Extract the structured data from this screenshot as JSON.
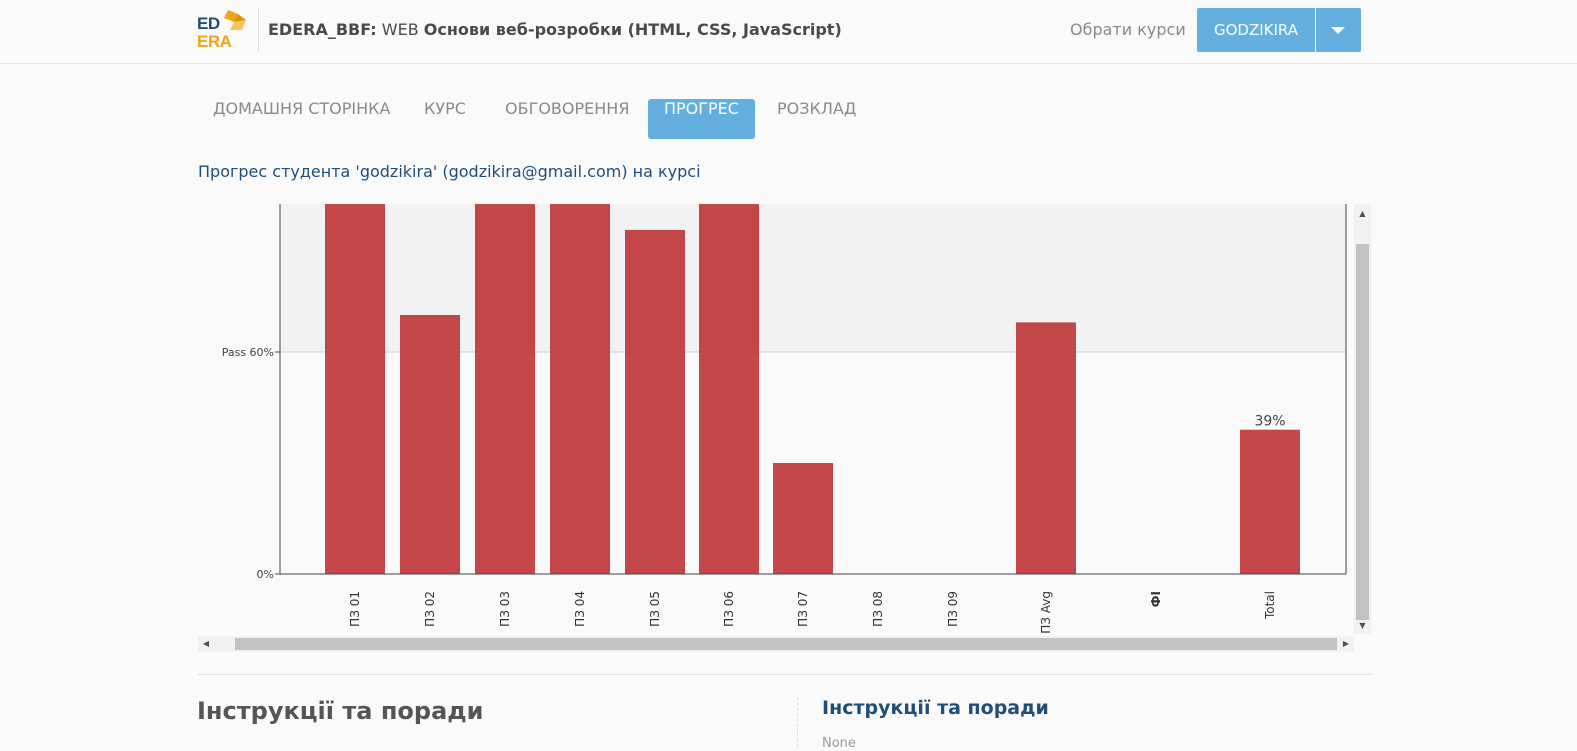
{
  "header": {
    "logo_top": "ED",
    "logo_bottom": "ERA",
    "org": "EDERA_BBF:",
    "course_code": " WEB ",
    "course_name": "Основи веб-розробки (HTML, CSS, JavaScript)",
    "choose_courses": "Обрати курси",
    "username": "GODZIKIRA"
  },
  "tabs": [
    {
      "label": "ДОМАШНЯ СТОРІНКА",
      "active": false
    },
    {
      "label": "КУРС",
      "active": false
    },
    {
      "label": "ОБГОВОРЕННЯ",
      "active": false
    },
    {
      "label": "ПРОГРЕС",
      "active": true
    },
    {
      "label": "РОЗКЛАД",
      "active": false
    }
  ],
  "progress_text": "Прогрес студента 'godzikira' (godzikira@gmail.com) на курсі",
  "chart_data": {
    "type": "bar",
    "categories": [
      "ПЗ 01",
      "ПЗ 02",
      "ПЗ 03",
      "ПЗ 04",
      "ПЗ 05",
      "ПЗ 06",
      "ПЗ 07",
      "ПЗ 08",
      "ПЗ 09",
      "ПЗ Avg",
      "ФІ",
      "Total"
    ],
    "values": [
      100,
      70,
      100,
      100,
      93,
      100,
      30,
      0,
      0,
      68,
      0,
      39
    ],
    "data_labels": {
      "Total": "39%"
    },
    "y_ticks": [
      {
        "value": 0,
        "label": "0%"
      },
      {
        "value": 60,
        "label": "Pass 60%"
      }
    ],
    "ylim": [
      0,
      100
    ],
    "pass_threshold": 60,
    "bar_color": "#c0393b",
    "pass_band_color": "#f2f2f2",
    "title": "",
    "xlabel": "",
    "ylabel": ""
  },
  "instructions": {
    "left_title": "Інструкції та поради",
    "right_title": "Інструкції та поради",
    "right_text": "None"
  },
  "colors": {
    "accent": "#63b0e0",
    "link": "#1f4e79"
  }
}
